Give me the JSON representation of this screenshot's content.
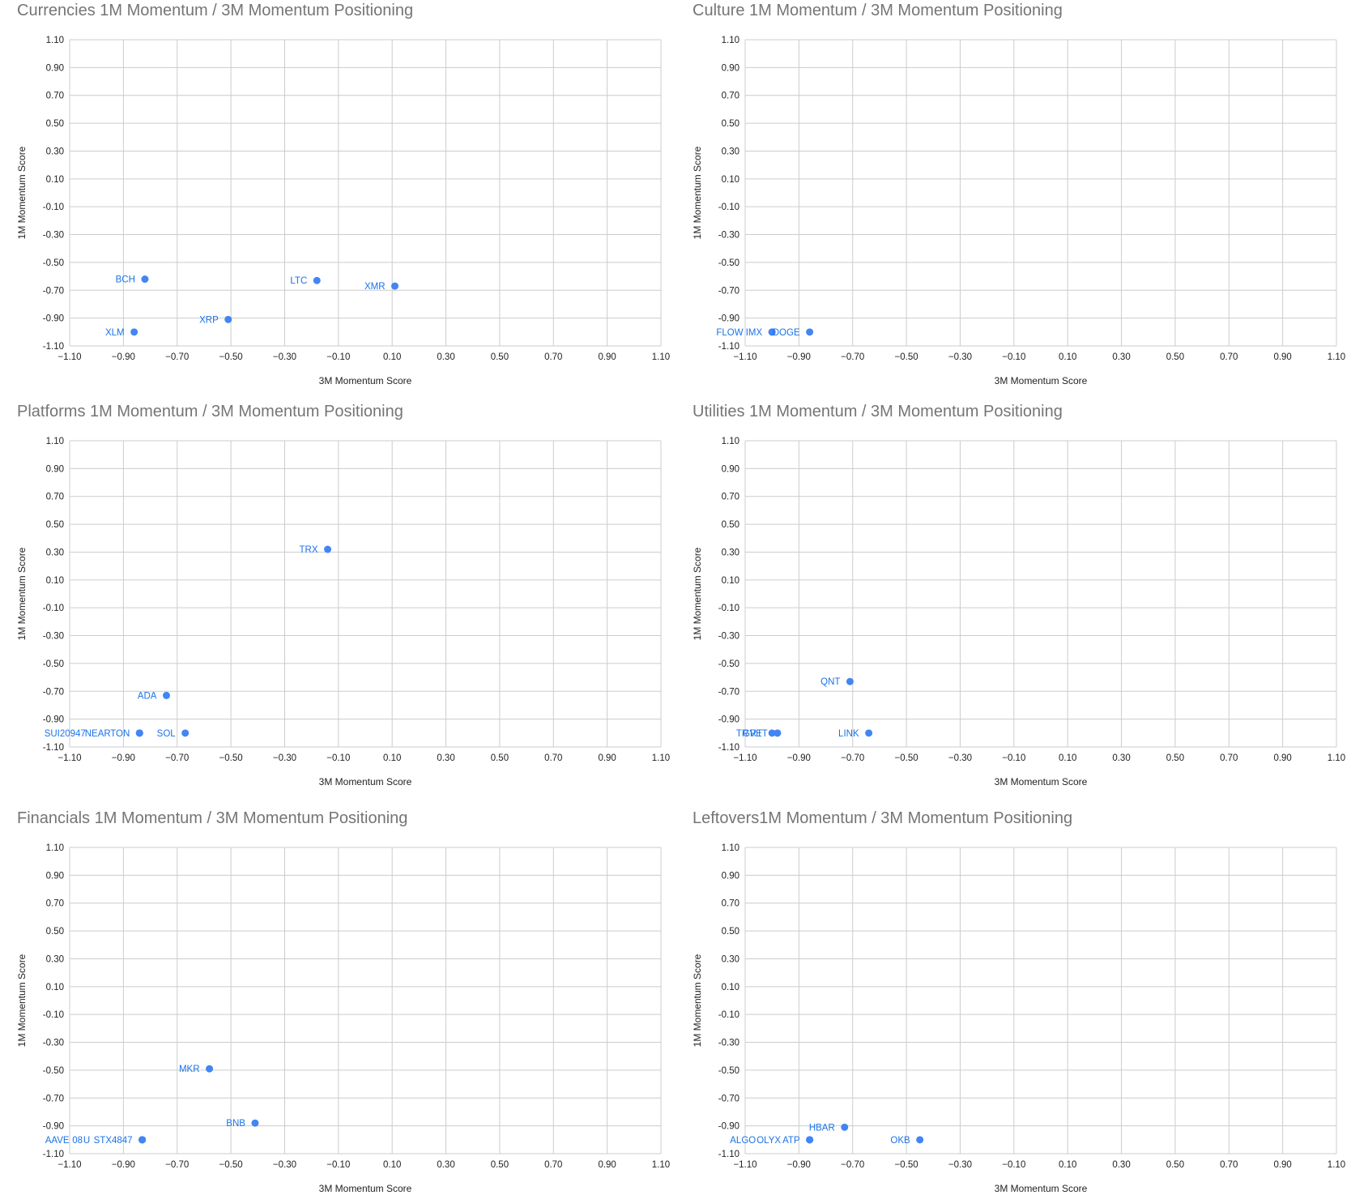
{
  "colors": {
    "point": "#4285f4",
    "label": "#1a73e8",
    "grid": "#cccccc",
    "title": "#757575",
    "text": "#222222"
  },
  "chart_data": [
    {
      "type": "scatter",
      "title": "Currencies 1M Momentum / 3M Momentum Positioning",
      "xlabel": "3M Momentum Score",
      "ylabel": "1M Momentum Score",
      "xlim": [
        -1.1,
        1.1
      ],
      "ylim": [
        -1.1,
        1.1
      ],
      "xticks": [
        "-1.10",
        "-0.90",
        "-0.70",
        "-0.50",
        "-0.30",
        "-0.10",
        "0.10",
        "0.30",
        "0.50",
        "0.70",
        "0.90",
        "1.10"
      ],
      "yticks": [
        "1.10",
        "0.90",
        "0.70",
        "0.50",
        "0.30",
        "0.10",
        "-0.10",
        "-0.30",
        "-0.50",
        "-0.70",
        "-0.90",
        "-1.10"
      ],
      "grid": true,
      "points": [
        {
          "label": "BCH",
          "x": -0.82,
          "y": -0.62
        },
        {
          "label": "LTC",
          "x": -0.18,
          "y": -0.63
        },
        {
          "label": "XMR",
          "x": 0.11,
          "y": -0.67
        },
        {
          "label": "XRP",
          "x": -0.51,
          "y": -0.91
        },
        {
          "label": "XLM",
          "x": -0.86,
          "y": -1.0
        }
      ]
    },
    {
      "type": "scatter",
      "title": "Culture 1M Momentum / 3M Momentum Positioning",
      "xlabel": "3M Momentum Score",
      "ylabel": "1M Momentum Score",
      "xlim": [
        -1.1,
        1.1
      ],
      "ylim": [
        -1.1,
        1.1
      ],
      "xticks": [
        "-1.10",
        "-0.90",
        "-0.70",
        "-0.50",
        "-0.30",
        "-0.10",
        "0.10",
        "0.30",
        "0.50",
        "0.70",
        "0.90",
        "1.10"
      ],
      "yticks": [
        "1.10",
        "0.90",
        "0.70",
        "0.50",
        "0.30",
        "0.10",
        "-0.10",
        "-0.30",
        "-0.50",
        "-0.70",
        "-0.90",
        "-1.10"
      ],
      "grid": true,
      "points": [
        {
          "label": "IMX",
          "x": -1.0,
          "y": -1.0
        },
        {
          "label": "FLOW",
          "x": -1.0,
          "y": -1.0
        },
        {
          "label": "DOGE",
          "x": -0.86,
          "y": -1.0
        }
      ]
    },
    {
      "type": "scatter",
      "title": "Platforms 1M Momentum / 3M Momentum Positioning",
      "xlabel": "3M Momentum Score",
      "ylabel": "1M Momentum Score",
      "xlim": [
        -1.1,
        1.1
      ],
      "ylim": [
        -1.1,
        1.1
      ],
      "xticks": [
        "-1.10",
        "-0.90",
        "-0.70",
        "-0.50",
        "-0.30",
        "-0.10",
        "0.10",
        "0.30",
        "0.50",
        "0.70",
        "0.90",
        "1.10"
      ],
      "yticks": [
        "1.10",
        "0.90",
        "0.70",
        "0.50",
        "0.30",
        "0.10",
        "-0.10",
        "-0.30",
        "-0.50",
        "-0.70",
        "-0.90",
        "-1.10"
      ],
      "grid": true,
      "points": [
        {
          "label": "TRX",
          "x": -0.14,
          "y": 0.32
        },
        {
          "label": "ADA",
          "x": -0.74,
          "y": -0.73
        },
        {
          "label": "SOL",
          "x": -0.67,
          "y": -1.0
        },
        {
          "label": "TON",
          "x": -0.84,
          "y": -1.0
        },
        {
          "label": "NEAR",
          "x": -0.84,
          "y": -1.0
        },
        {
          "label": "SUI20947",
          "x": -0.84,
          "y": -1.0
        }
      ]
    },
    {
      "type": "scatter",
      "title": "Utilities 1M Momentum / 3M Momentum Positioning",
      "xlabel": "3M Momentum Score",
      "ylabel": "1M Momentum Score",
      "xlim": [
        -1.1,
        1.1
      ],
      "ylim": [
        -1.1,
        1.1
      ],
      "xticks": [
        "-1.10",
        "-0.90",
        "-0.70",
        "-0.50",
        "-0.30",
        "-0.10",
        "0.10",
        "0.30",
        "0.50",
        "0.70",
        "0.90",
        "1.10"
      ],
      "yticks": [
        "1.10",
        "0.90",
        "0.70",
        "0.50",
        "0.30",
        "0.10",
        "-0.10",
        "-0.30",
        "-0.50",
        "-0.70",
        "-0.90",
        "-1.10"
      ],
      "grid": true,
      "points": [
        {
          "label": "QNT",
          "x": -0.71,
          "y": -0.63
        },
        {
          "label": "LINK",
          "x": -0.64,
          "y": -1.0
        },
        {
          "label": "GRT",
          "x": -1.0,
          "y": -1.0
        },
        {
          "label": "VET",
          "x": -0.98,
          "y": -1.0
        },
        {
          "label": "TR",
          "x": -0.98,
          "y": -1.0
        }
      ]
    },
    {
      "type": "scatter",
      "title": "Financials 1M Momentum / 3M Momentum Positioning",
      "xlabel": "3M Momentum Score",
      "ylabel": "1M Momentum Score",
      "xlim": [
        -1.1,
        1.1
      ],
      "ylim": [
        -1.1,
        1.1
      ],
      "xticks": [
        "-1.10",
        "-0.90",
        "-0.70",
        "-0.50",
        "-0.30",
        "-0.10",
        "0.10",
        "0.30",
        "0.50",
        "0.70",
        "0.90",
        "1.10"
      ],
      "yticks": [
        "1.10",
        "0.90",
        "0.70",
        "0.50",
        "0.30",
        "0.10",
        "-0.10",
        "-0.30",
        "-0.50",
        "-0.70",
        "-0.90",
        "-1.10"
      ],
      "grid": true,
      "points": [
        {
          "label": "MKR",
          "x": -0.58,
          "y": -0.49
        },
        {
          "label": "BNB",
          "x": -0.41,
          "y": -0.88
        },
        {
          "label": "STX4847",
          "x": -0.83,
          "y": -1.0
        },
        {
          "label": "U",
          "x": -0.83,
          "y": -1.0
        },
        {
          "label": "08",
          "x": -0.83,
          "y": -1.0
        },
        {
          "label": "AAVE",
          "x": -0.83,
          "y": -1.0
        }
      ]
    },
    {
      "type": "scatter",
      "title": "Leftovers1M Momentum / 3M Momentum Positioning",
      "xlabel": "3M Momentum Score",
      "ylabel": "1M Momentum Score",
      "xlim": [
        -1.1,
        1.1
      ],
      "ylim": [
        -1.1,
        1.1
      ],
      "xticks": [
        "-1.10",
        "-0.90",
        "-0.70",
        "-0.50",
        "-0.30",
        "-0.10",
        "0.10",
        "0.30",
        "0.50",
        "0.70",
        "0.90",
        "1.10"
      ],
      "yticks": [
        "1.10",
        "0.90",
        "0.70",
        "0.50",
        "0.30",
        "0.10",
        "-0.10",
        "-0.30",
        "-0.50",
        "-0.70",
        "-0.90",
        "-1.10"
      ],
      "grid": true,
      "points": [
        {
          "label": "HBAR",
          "x": -0.73,
          "y": -0.91
        },
        {
          "label": "OKB",
          "x": -0.45,
          "y": -1.0
        },
        {
          "label": "ATP",
          "x": -0.86,
          "y": -1.0
        },
        {
          "label": "OLYX",
          "x": -0.86,
          "y": -1.0
        },
        {
          "label": "ALGO",
          "x": -0.86,
          "y": -1.0
        }
      ]
    }
  ]
}
